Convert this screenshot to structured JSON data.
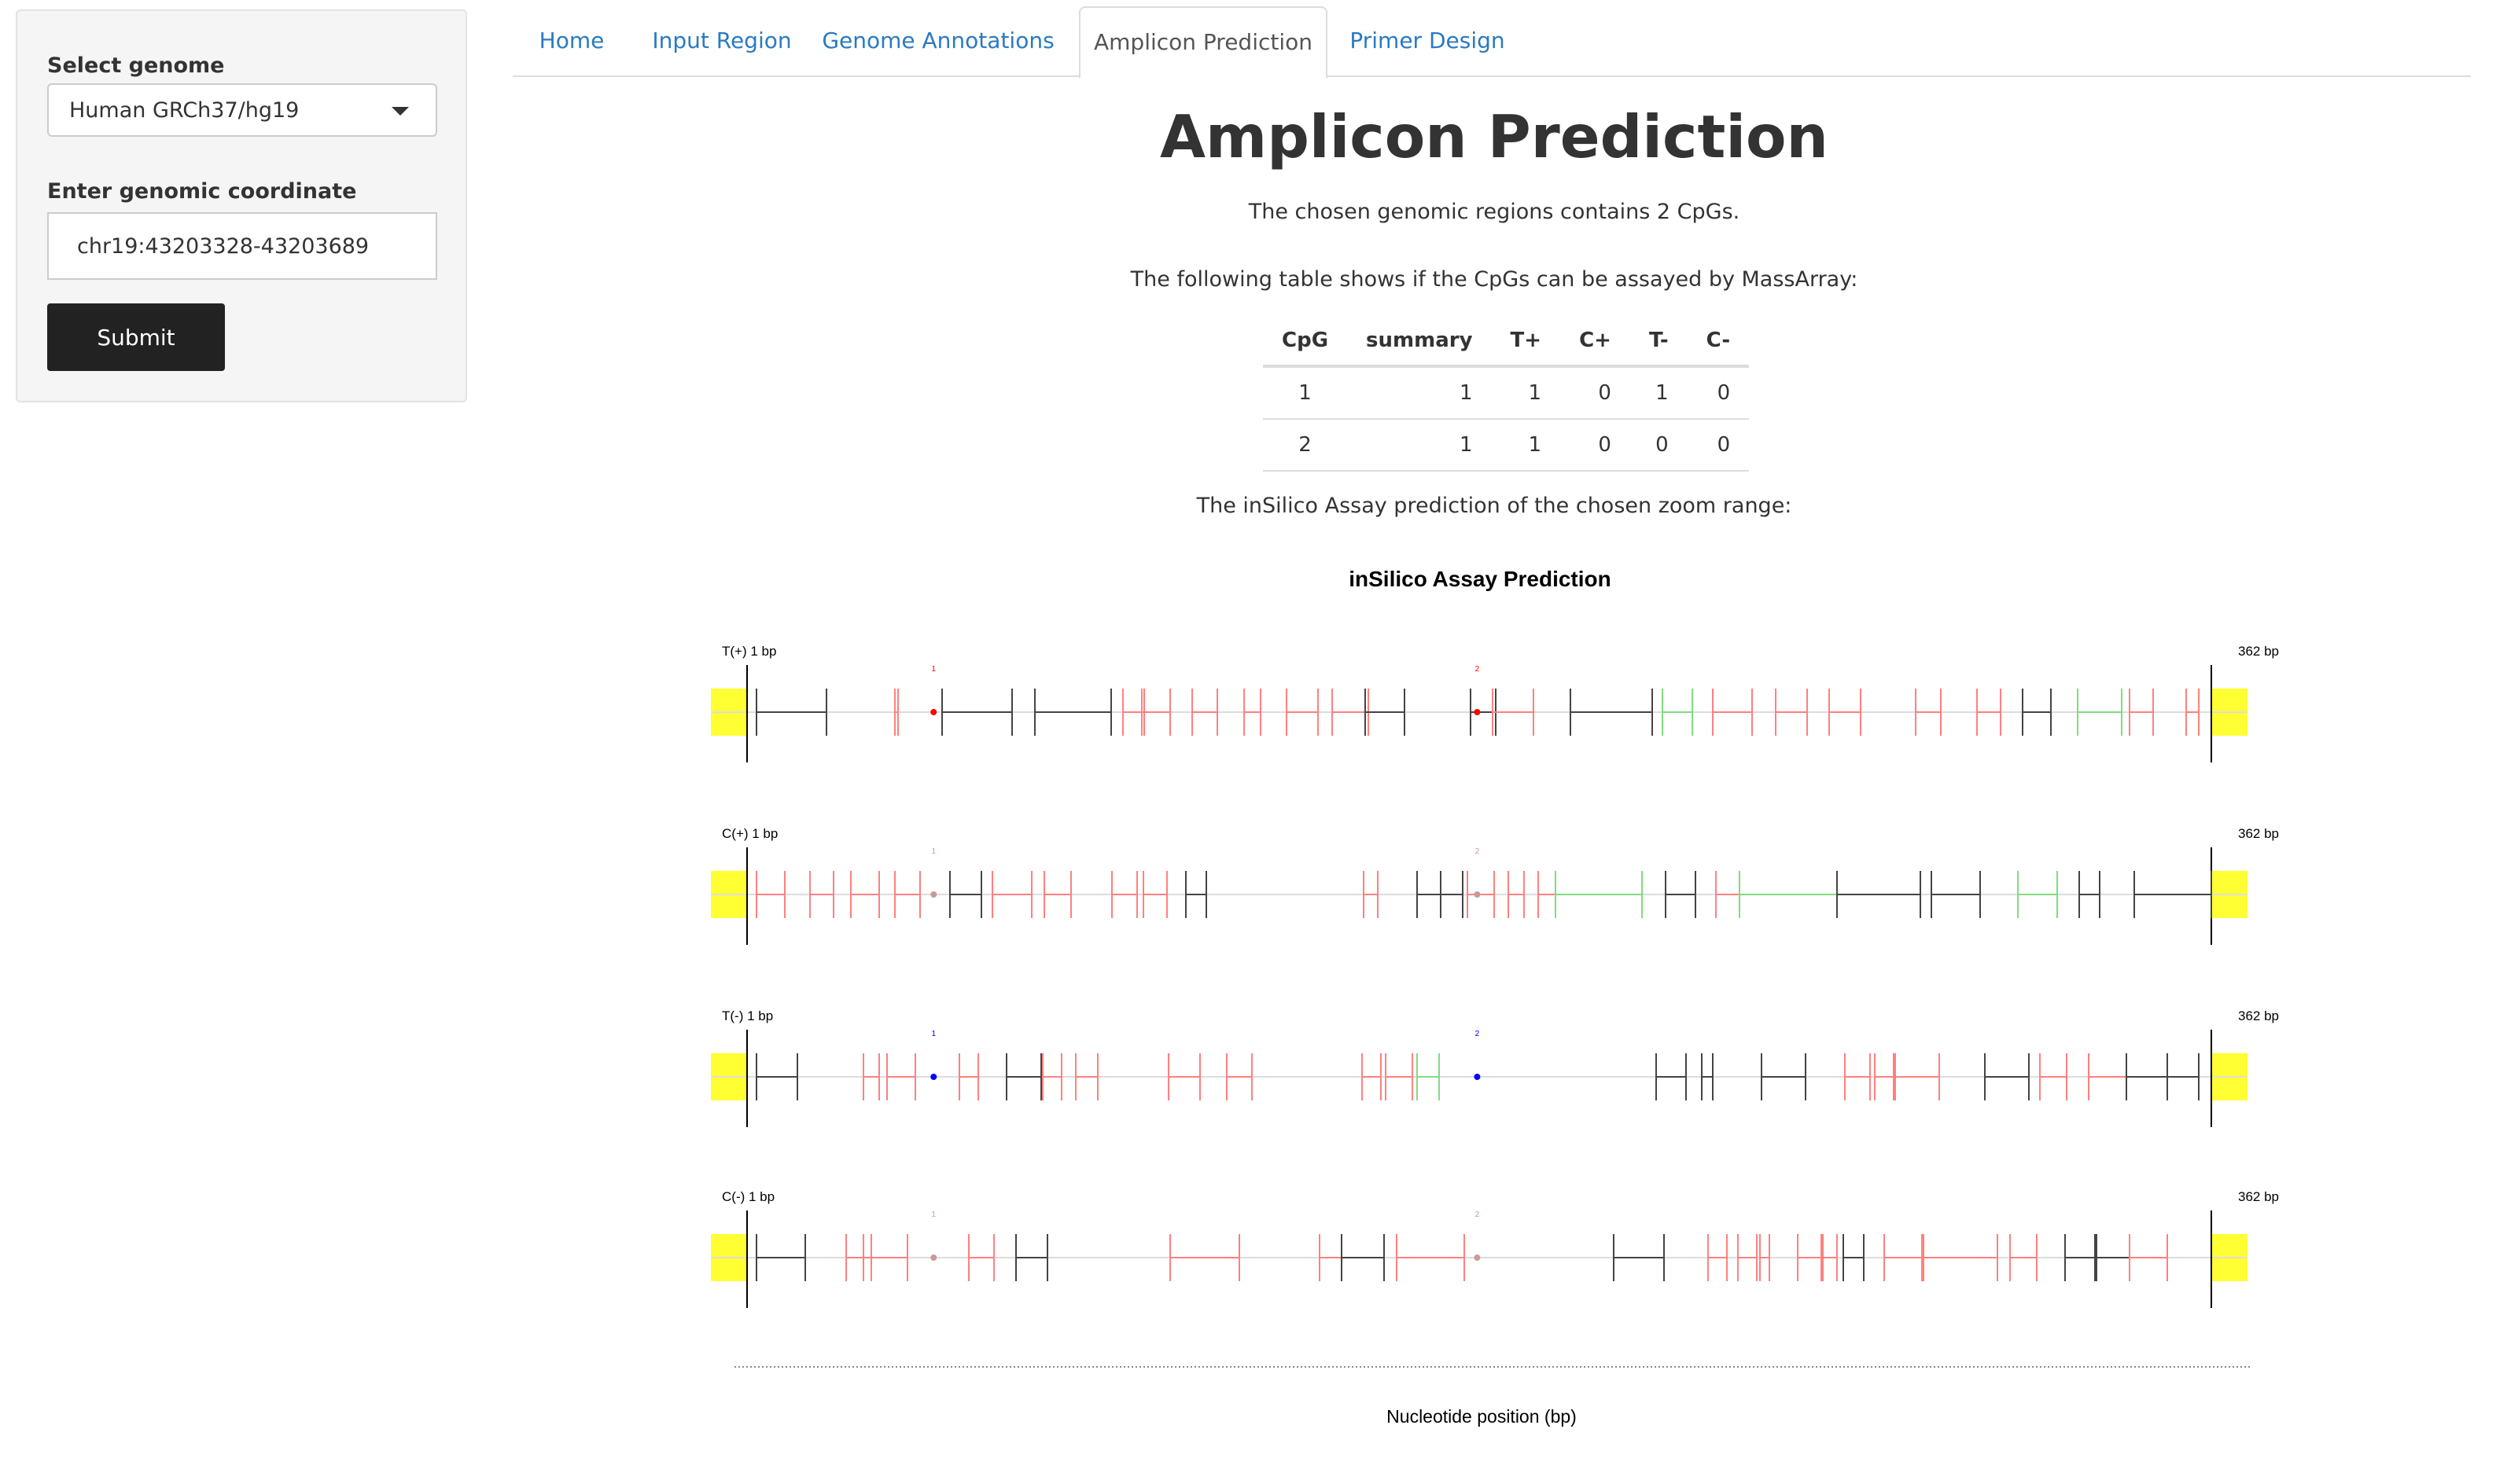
{
  "sidebar": {
    "genome_label": "Select genome",
    "genome_value": "Human GRCh37/hg19",
    "coord_label": "Enter genomic coordinate",
    "coord_value": "chr19:43203328-43203689",
    "submit_label": "Submit"
  },
  "tabs": [
    {
      "label": "Home",
      "active": false
    },
    {
      "label": "Input Region",
      "active": false
    },
    {
      "label": "Genome Annotations",
      "active": false
    },
    {
      "label": "Amplicon Prediction",
      "active": true
    },
    {
      "label": "Primer Design",
      "active": false
    }
  ],
  "main": {
    "title": "Amplicon Prediction",
    "cpg_summary": "The chosen genomic regions contains 2 CpGs.",
    "table_intro": "The following table shows if the CpGs can be assayed by MassArray:",
    "plot_intro": "The inSilico Assay prediction of the chosen zoom range:"
  },
  "table": {
    "headers": [
      "CpG",
      "summary",
      "T+",
      "C+",
      "T-",
      "C-"
    ],
    "rows": [
      [
        "1",
        "1",
        "1",
        "0",
        "1",
        "0"
      ],
      [
        "2",
        "1",
        "1",
        "0",
        "0",
        "0"
      ]
    ]
  },
  "chart_data": {
    "type": "other",
    "title": "inSilico Assay Prediction",
    "xlabel": "Nucleotide position (bp)",
    "x_range": [
      1,
      362
    ],
    "colors": {
      "highlight": "#ffff33",
      "cpg_highlight": "#ff0000",
      "cpg_blue": "#0000ff",
      "black_frag": "#444444",
      "red_frag": "#ff8080",
      "green_frag": "#80dd80"
    },
    "tracks": [
      {
        "label": "T(+) 1 bp",
        "end_label": "362 bp",
        "cpg_labels": [
          "1",
          "2"
        ],
        "cpg_color": "#ff0000"
      },
      {
        "label": "C(+) 1 bp",
        "end_label": "362 bp",
        "cpg_labels": [
          "1",
          "2"
        ],
        "cpg_color": "#cc9999"
      },
      {
        "label": "T(-) 1 bp",
        "end_label": "362 bp",
        "cpg_labels": [
          "1",
          "2"
        ],
        "cpg_color": "#0000ff"
      },
      {
        "label": "C(-) 1 bp",
        "end_label": "362 bp",
        "cpg_labels": [
          "1",
          "2"
        ],
        "cpg_color": "#cc9999"
      }
    ],
    "cpg_positions": [
      47,
      181
    ]
  }
}
